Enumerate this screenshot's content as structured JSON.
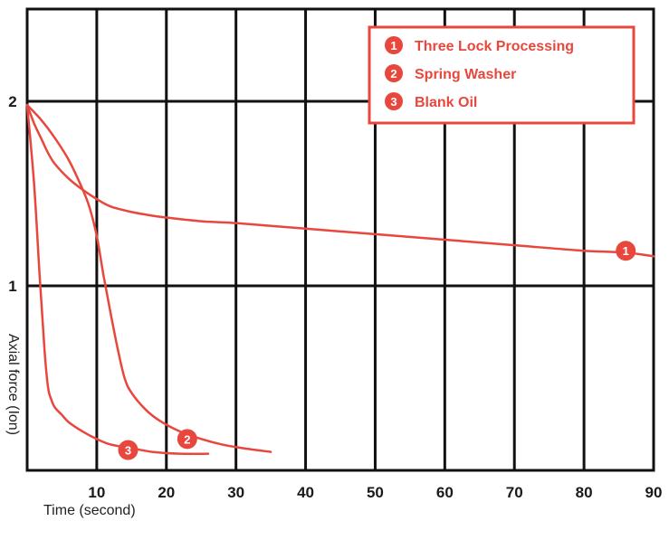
{
  "chart_data": {
    "type": "line",
    "title": "",
    "xlabel": "Time (second)",
    "ylabel": "Axial force (Ion)",
    "xlim": [
      0,
      90
    ],
    "ylim": [
      0,
      2.5
    ],
    "x_ticks": [
      10,
      20,
      30,
      40,
      50,
      60,
      70,
      80,
      90
    ],
    "y_ticks": [
      1,
      2
    ],
    "grid": true,
    "legend_position": "top-right",
    "colors": {
      "series": "#e8473d",
      "grid": "#111111",
      "badge": "#e8473d"
    },
    "series": [
      {
        "name": "Three Lock Processing",
        "badge": "1",
        "x": [
          0,
          1,
          2,
          3,
          4,
          6,
          8,
          10,
          12,
          15,
          18,
          20,
          25,
          30,
          40,
          50,
          60,
          70,
          80,
          86,
          90
        ],
        "y": [
          1.98,
          1.88,
          1.8,
          1.72,
          1.66,
          1.58,
          1.52,
          1.47,
          1.43,
          1.4,
          1.38,
          1.37,
          1.35,
          1.34,
          1.31,
          1.28,
          1.25,
          1.22,
          1.19,
          1.18,
          1.16
        ],
        "badge_at": [
          86,
          1.19
        ]
      },
      {
        "name": "Spring Washer",
        "badge": "2",
        "x": [
          0,
          2,
          4,
          6,
          8,
          9,
          10,
          11,
          12,
          13,
          14,
          15,
          17,
          19,
          22,
          25,
          28,
          31,
          35
        ],
        "y": [
          1.98,
          1.9,
          1.8,
          1.68,
          1.52,
          1.42,
          1.27,
          1.05,
          0.85,
          0.66,
          0.5,
          0.42,
          0.33,
          0.27,
          0.21,
          0.17,
          0.14,
          0.12,
          0.1
        ],
        "badge_at": [
          23,
          0.17
        ]
      },
      {
        "name": "Blank Oil",
        "badge": "3",
        "x": [
          0,
          1,
          1.8,
          2.5,
          3,
          3.5,
          4,
          5,
          6,
          8,
          10,
          12,
          15,
          18,
          22,
          26
        ],
        "y": [
          1.98,
          1.55,
          1.05,
          0.65,
          0.45,
          0.38,
          0.34,
          0.3,
          0.26,
          0.21,
          0.17,
          0.14,
          0.12,
          0.1,
          0.09,
          0.09
        ],
        "badge_at": [
          14.5,
          0.11
        ]
      }
    ]
  }
}
